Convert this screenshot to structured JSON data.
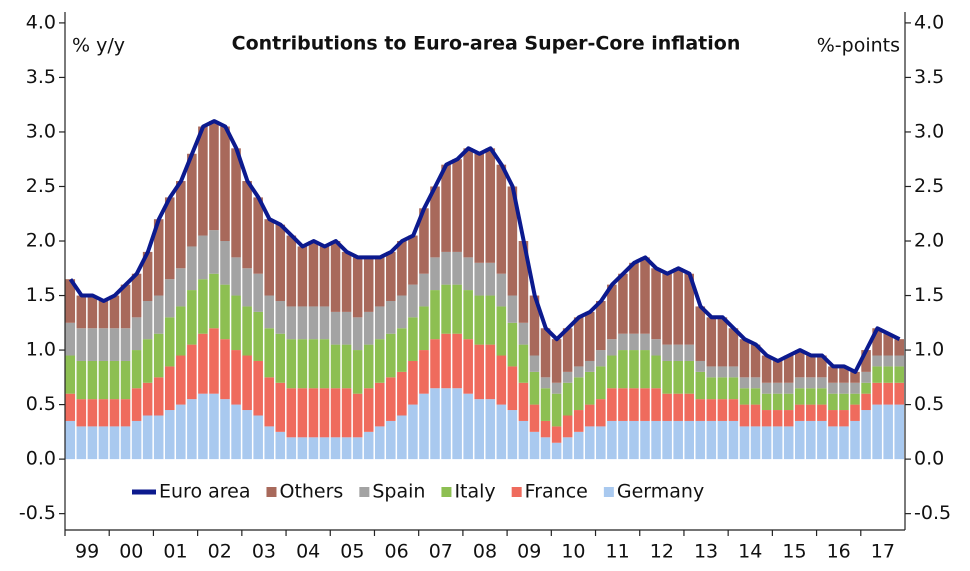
{
  "chart_data": {
    "type": "stacked-bar-line",
    "title": "Contributions to Euro-area Super-Core inflation",
    "y_label": "% y/y",
    "y2_label": "%-points",
    "categories": [
      "99",
      null,
      null,
      null,
      "00",
      null,
      null,
      null,
      "01",
      null,
      null,
      null,
      "02",
      null,
      null,
      null,
      "03",
      null,
      null,
      null,
      "04",
      null,
      null,
      null,
      "05",
      null,
      null,
      null,
      "06",
      null,
      null,
      null,
      "07",
      null,
      null,
      null,
      "08",
      null,
      null,
      null,
      "09",
      null,
      null,
      null,
      "10",
      null,
      null,
      null,
      "11",
      null,
      null,
      null,
      "12",
      null,
      null,
      null,
      "13",
      null,
      null,
      null,
      "14",
      null,
      null,
      null,
      "15",
      null,
      null,
      null,
      "16",
      null,
      null,
      null,
      "17",
      null,
      null,
      null
    ],
    "series": [
      {
        "name": "Euro area",
        "kind": "line",
        "color": "#0c1a8e",
        "values": [
          1.65,
          1.5,
          1.5,
          1.45,
          1.5,
          1.6,
          1.7,
          1.9,
          2.2,
          2.4,
          2.55,
          2.8,
          3.05,
          3.1,
          3.05,
          2.85,
          2.55,
          2.4,
          2.2,
          2.15,
          2.05,
          1.95,
          2.0,
          1.95,
          2.0,
          1.9,
          1.85,
          1.85,
          1.85,
          1.9,
          2.0,
          2.05,
          2.3,
          2.5,
          2.7,
          2.75,
          2.85,
          2.8,
          2.85,
          2.7,
          2.5,
          2.0,
          1.5,
          1.2,
          1.1,
          1.2,
          1.3,
          1.35,
          1.45,
          1.6,
          1.7,
          1.8,
          1.85,
          1.75,
          1.7,
          1.75,
          1.7,
          1.4,
          1.3,
          1.3,
          1.2,
          1.1,
          1.05,
          0.95,
          0.9,
          0.95,
          1.0,
          0.95,
          0.95,
          0.85,
          0.85,
          0.8,
          1.0,
          1.2,
          1.15,
          1.1
        ]
      },
      {
        "name": "Others",
        "kind": "bar",
        "color": "#a8695b",
        "values": [
          0.4,
          0.3,
          0.3,
          0.25,
          0.3,
          0.4,
          0.4,
          0.45,
          0.7,
          0.75,
          0.8,
          0.85,
          1.0,
          1.0,
          1.05,
          1.0,
          0.8,
          0.7,
          0.7,
          0.7,
          0.65,
          0.55,
          0.6,
          0.55,
          0.65,
          0.55,
          0.55,
          0.5,
          0.45,
          0.45,
          0.5,
          0.45,
          0.6,
          0.65,
          0.8,
          0.85,
          1.0,
          1.0,
          1.05,
          1.0,
          1.0,
          0.75,
          0.55,
          0.45,
          0.4,
          0.4,
          0.45,
          0.45,
          0.45,
          0.5,
          0.55,
          0.65,
          0.7,
          0.65,
          0.65,
          0.7,
          0.65,
          0.5,
          0.45,
          0.45,
          0.35,
          0.35,
          0.3,
          0.25,
          0.2,
          0.25,
          0.25,
          0.2,
          0.2,
          0.15,
          0.15,
          0.1,
          0.2,
          0.25,
          0.2,
          0.15
        ]
      },
      {
        "name": "Spain",
        "kind": "bar",
        "color": "#a3a3a3",
        "values": [
          0.3,
          0.3,
          0.3,
          0.3,
          0.3,
          0.3,
          0.3,
          0.35,
          0.35,
          0.35,
          0.35,
          0.4,
          0.4,
          0.4,
          0.4,
          0.35,
          0.35,
          0.35,
          0.3,
          0.3,
          0.3,
          0.3,
          0.3,
          0.3,
          0.3,
          0.3,
          0.3,
          0.3,
          0.3,
          0.3,
          0.3,
          0.3,
          0.3,
          0.3,
          0.3,
          0.3,
          0.3,
          0.3,
          0.3,
          0.3,
          0.25,
          0.2,
          0.15,
          0.1,
          0.1,
          0.1,
          0.1,
          0.1,
          0.15,
          0.15,
          0.15,
          0.15,
          0.15,
          0.15,
          0.15,
          0.15,
          0.15,
          0.1,
          0.1,
          0.1,
          0.1,
          0.1,
          0.1,
          0.1,
          0.1,
          0.1,
          0.1,
          0.1,
          0.1,
          0.1,
          0.1,
          0.1,
          0.1,
          0.1,
          0.1,
          0.1
        ]
      },
      {
        "name": "Italy",
        "kind": "bar",
        "color": "#8dbf52",
        "values": [
          0.35,
          0.35,
          0.35,
          0.35,
          0.35,
          0.35,
          0.35,
          0.4,
          0.4,
          0.45,
          0.45,
          0.5,
          0.5,
          0.5,
          0.5,
          0.5,
          0.45,
          0.45,
          0.45,
          0.45,
          0.45,
          0.45,
          0.45,
          0.45,
          0.4,
          0.4,
          0.4,
          0.4,
          0.4,
          0.4,
          0.4,
          0.4,
          0.4,
          0.45,
          0.45,
          0.45,
          0.45,
          0.45,
          0.45,
          0.45,
          0.4,
          0.35,
          0.3,
          0.3,
          0.3,
          0.3,
          0.3,
          0.3,
          0.3,
          0.3,
          0.35,
          0.35,
          0.35,
          0.3,
          0.3,
          0.3,
          0.3,
          0.25,
          0.2,
          0.2,
          0.2,
          0.15,
          0.15,
          0.15,
          0.15,
          0.15,
          0.15,
          0.15,
          0.15,
          0.15,
          0.15,
          0.1,
          0.1,
          0.15,
          0.15,
          0.15
        ]
      },
      {
        "name": "France",
        "kind": "bar",
        "color": "#ef6b5d",
        "values": [
          0.25,
          0.25,
          0.25,
          0.25,
          0.25,
          0.25,
          0.3,
          0.3,
          0.35,
          0.4,
          0.45,
          0.5,
          0.55,
          0.6,
          0.55,
          0.5,
          0.5,
          0.5,
          0.45,
          0.45,
          0.45,
          0.45,
          0.45,
          0.45,
          0.45,
          0.45,
          0.4,
          0.4,
          0.4,
          0.4,
          0.4,
          0.4,
          0.4,
          0.45,
          0.5,
          0.5,
          0.5,
          0.5,
          0.5,
          0.45,
          0.4,
          0.35,
          0.25,
          0.15,
          0.15,
          0.2,
          0.2,
          0.2,
          0.25,
          0.3,
          0.3,
          0.3,
          0.3,
          0.3,
          0.25,
          0.25,
          0.25,
          0.2,
          0.2,
          0.2,
          0.2,
          0.2,
          0.2,
          0.15,
          0.15,
          0.15,
          0.15,
          0.15,
          0.15,
          0.15,
          0.15,
          0.15,
          0.15,
          0.2,
          0.2,
          0.2
        ]
      },
      {
        "name": "Germany",
        "kind": "bar",
        "color": "#a9c9ef",
        "values": [
          0.35,
          0.3,
          0.3,
          0.3,
          0.3,
          0.3,
          0.35,
          0.4,
          0.4,
          0.45,
          0.5,
          0.55,
          0.6,
          0.6,
          0.55,
          0.5,
          0.45,
          0.4,
          0.3,
          0.25,
          0.2,
          0.2,
          0.2,
          0.2,
          0.2,
          0.2,
          0.2,
          0.25,
          0.3,
          0.35,
          0.4,
          0.5,
          0.6,
          0.65,
          0.65,
          0.65,
          0.6,
          0.55,
          0.55,
          0.5,
          0.45,
          0.35,
          0.25,
          0.2,
          0.15,
          0.2,
          0.25,
          0.3,
          0.3,
          0.35,
          0.35,
          0.35,
          0.35,
          0.35,
          0.35,
          0.35,
          0.35,
          0.35,
          0.35,
          0.35,
          0.35,
          0.3,
          0.3,
          0.3,
          0.3,
          0.3,
          0.35,
          0.35,
          0.35,
          0.3,
          0.3,
          0.35,
          0.45,
          0.5,
          0.5,
          0.5
        ]
      }
    ],
    "ylim": [
      -0.65,
      4.1
    ],
    "yticks": [
      -0.5,
      {
        "value": 0,
        "label": "0.0"
      },
      0.5,
      {
        "value": 1,
        "label": "1.0"
      },
      1.5,
      {
        "value": 2,
        "label": "2.0"
      },
      2.5,
      {
        "value": 3,
        "label": "3.0"
      },
      3.5,
      {
        "value": 4,
        "label": "4.0"
      }
    ],
    "y2lim": [
      -0.65,
      4.1
    ],
    "y2ticks": [
      -0.5,
      {
        "value": 0,
        "label": "0.0"
      },
      0.5,
      {
        "value": 1,
        "label": "1.0"
      },
      1.5,
      {
        "value": 2,
        "label": "2.0"
      },
      2.5,
      {
        "value": 3,
        "label": "3.0"
      },
      3.5,
      {
        "value": 4,
        "label": "4.0"
      }
    ],
    "grid": false
  }
}
